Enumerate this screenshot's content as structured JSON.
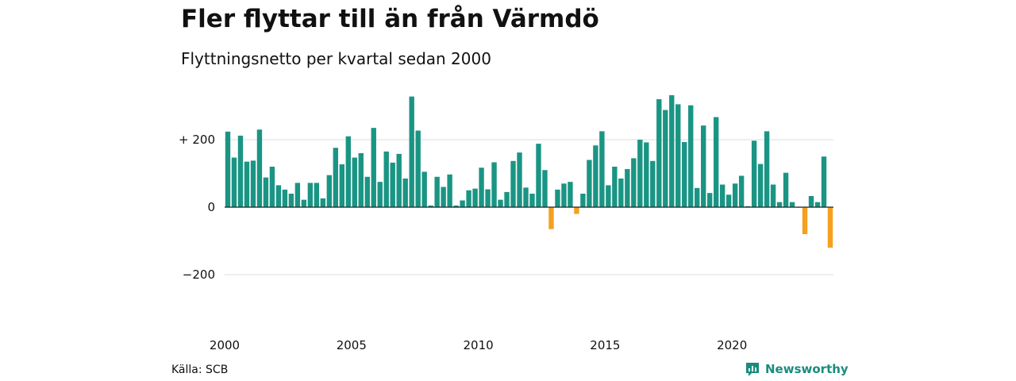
{
  "header": {
    "title": "Fler flyttar till än från Värmdö",
    "subtitle": "Flyttningsnetto per kvartal sedan 2000"
  },
  "footer": {
    "source": "Källa: SCB",
    "brand": "Newsworthy",
    "brand_icon": "bar-chart-icon"
  },
  "colors": {
    "positive": "#1a9584",
    "negative": "#f5a01f",
    "grid": "#dddddd",
    "zero_line": "#222222",
    "brand": "#1a8c7c"
  },
  "chart_data": {
    "type": "bar",
    "title": "Fler flyttar till än från Värmdö",
    "subtitle": "Flyttningsnetto per kvartal sedan 2000",
    "xlabel": "",
    "ylabel": "",
    "ylim": [
      -300,
      340
    ],
    "yticks": [
      {
        "value": 200,
        "label": "+ 200"
      },
      {
        "value": 0,
        "label": "0"
      },
      {
        "value": -200,
        "label": "−200"
      }
    ],
    "xticks": [
      {
        "year": 2000,
        "label": "2000"
      },
      {
        "year": 2005,
        "label": "2005"
      },
      {
        "year": 2010,
        "label": "2010"
      },
      {
        "year": 2015,
        "label": "2015"
      },
      {
        "year": 2020,
        "label": "2020"
      }
    ],
    "grid": true,
    "start_year": 2000,
    "start_quarter": 1,
    "values": [
      224,
      147,
      212,
      135,
      138,
      230,
      88,
      120,
      65,
      52,
      40,
      72,
      22,
      72,
      72,
      26,
      95,
      176,
      127,
      210,
      147,
      160,
      90,
      235,
      75,
      165,
      132,
      158,
      85,
      328,
      227,
      105,
      5,
      90,
      60,
      97,
      5,
      20,
      50,
      55,
      117,
      53,
      133,
      22,
      45,
      137,
      162,
      58,
      40,
      188,
      110,
      -65,
      52,
      70,
      75,
      -20,
      40,
      140,
      183,
      225,
      65,
      120,
      85,
      113,
      145,
      200,
      192,
      137,
      320,
      288,
      332,
      305,
      193,
      302,
      57,
      242,
      42,
      267,
      67,
      37,
      70,
      93,
      3,
      197,
      128,
      225,
      67,
      15,
      102,
      15,
      -1,
      -80,
      33,
      15,
      150,
      -120
    ]
  }
}
